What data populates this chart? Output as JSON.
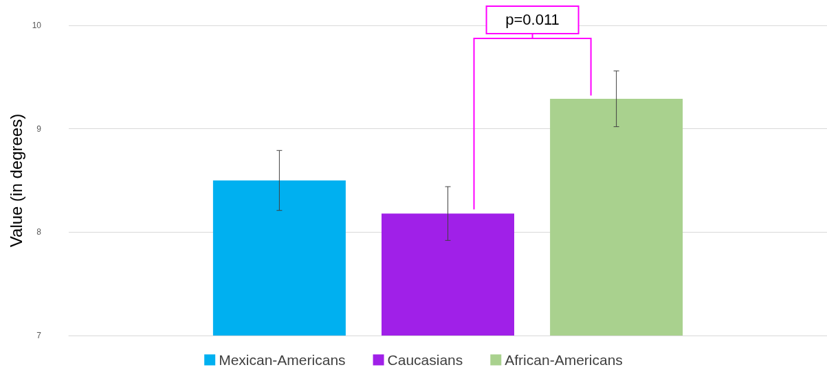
{
  "chart_data": {
    "type": "bar",
    "ylabel": "Value (in degrees)",
    "categories": [
      null
    ],
    "series": [
      {
        "name": "Mexican-Americans",
        "color": "#00b0f0",
        "values": [
          8.5
        ],
        "errors": [
          0.29
        ]
      },
      {
        "name": "Caucasians",
        "color": "#a020e8",
        "values": [
          8.18
        ],
        "errors": [
          0.26
        ]
      },
      {
        "name": "African-Americans",
        "color": "#a9d18e",
        "values": [
          9.29
        ],
        "errors": [
          0.27
        ]
      }
    ],
    "ylim": [
      7,
      10
    ],
    "yticks": [
      7,
      8,
      9,
      10
    ],
    "grid": "y",
    "legend": "bottom",
    "annotations": [
      "p=0.011"
    ]
  }
}
